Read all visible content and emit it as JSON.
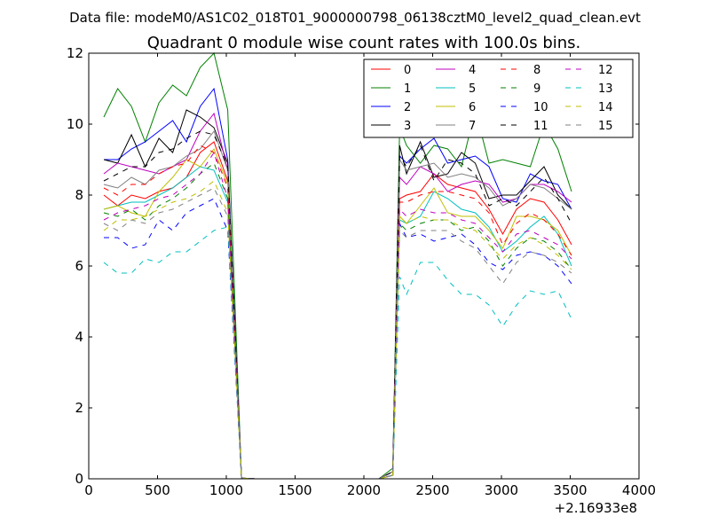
{
  "chart_data": {
    "type": "line",
    "suptitle": "Data file: modeM0/AS1C02_018T01_9000000798_06138cztM0_level2_quad_clean.evt",
    "title": "Quadrant 0 module wise count rates with 100.0s bins.",
    "xlabel": "",
    "ylabel": "",
    "xlim": [
      0,
      4000
    ],
    "ylim": [
      0,
      12
    ],
    "x_ticks": [
      0,
      500,
      1000,
      1500,
      2000,
      2500,
      3000,
      3500,
      4000
    ],
    "y_ticks": [
      0,
      2,
      4,
      6,
      8,
      10,
      12
    ],
    "x_offset_label": "+2.16933e8",
    "grid": false,
    "legend": {
      "placement": "top-right",
      "columns": 4
    },
    "x": [
      110,
      210,
      310,
      410,
      510,
      610,
      710,
      810,
      910,
      1010,
      1110,
      1210,
      1310,
      1410,
      1510,
      1610,
      1710,
      1810,
      1910,
      2010,
      2110,
      2210,
      2260,
      2310,
      2410,
      2510,
      2610,
      2710,
      2810,
      2910,
      3010,
      3110,
      3210,
      3310,
      3410,
      3510
    ],
    "series": [
      {
        "name": "0",
        "color": "#ff0000",
        "dash": "solid",
        "values": [
          8.0,
          7.7,
          8.0,
          7.9,
          8.1,
          8.2,
          8.5,
          9.2,
          9.5,
          8.4,
          0.02,
          0,
          0,
          0,
          0,
          0,
          0,
          0,
          0,
          0,
          0,
          0.1,
          7.9,
          8.0,
          8.1,
          8.6,
          8.3,
          8.2,
          8.1,
          7.6,
          6.9,
          7.6,
          7.9,
          7.8,
          7.3,
          6.6
        ]
      },
      {
        "name": "1",
        "color": "#008000",
        "dash": "solid",
        "values": [
          10.2,
          11.0,
          10.5,
          9.5,
          10.6,
          11.1,
          10.8,
          11.6,
          12.0,
          10.4,
          0.02,
          0,
          0,
          0,
          0,
          0,
          0,
          0,
          0,
          0,
          0,
          0.3,
          9.9,
          9.4,
          8.9,
          9.4,
          9.3,
          8.8,
          10.4,
          8.9,
          9.0,
          8.9,
          8.8,
          10.0,
          9.3,
          8.1
        ]
      },
      {
        "name": "2",
        "color": "#0000ff",
        "dash": "solid",
        "values": [
          9.0,
          9.0,
          9.3,
          9.5,
          9.8,
          10.1,
          9.5,
          10.5,
          11.0,
          9.0,
          0.02,
          0,
          0,
          0,
          0,
          0,
          0,
          0,
          0,
          0,
          0,
          0.2,
          9.1,
          8.9,
          9.3,
          9.6,
          8.9,
          9.0,
          9.1,
          8.8,
          7.9,
          7.8,
          8.6,
          8.4,
          8.3,
          7.6
        ]
      },
      {
        "name": "3",
        "color": "#000000",
        "dash": "solid",
        "values": [
          9.0,
          8.9,
          9.7,
          8.8,
          9.6,
          9.2,
          10.4,
          10.2,
          9.9,
          8.9,
          0.02,
          0,
          0,
          0,
          0,
          0,
          0,
          0,
          0,
          0,
          0,
          0.2,
          9.4,
          8.6,
          9.5,
          8.5,
          8.6,
          9.2,
          8.9,
          7.9,
          8.0,
          8.0,
          8.4,
          8.8,
          8.0,
          7.6
        ]
      },
      {
        "name": "4",
        "color": "#bf00bf",
        "dash": "solid",
        "values": [
          8.6,
          8.9,
          8.8,
          8.7,
          8.6,
          8.8,
          9.0,
          9.8,
          10.3,
          8.7,
          0.02,
          0,
          0,
          0,
          0,
          0,
          0,
          0,
          0,
          0,
          0,
          0.2,
          8.5,
          8.3,
          8.8,
          8.6,
          8.1,
          8.3,
          8.4,
          8.3,
          7.8,
          7.9,
          8.3,
          8.3,
          8.1,
          7.8
        ]
      },
      {
        "name": "5",
        "color": "#00bfbf",
        "dash": "solid",
        "values": [
          7.6,
          7.7,
          7.8,
          7.8,
          8.0,
          8.2,
          8.5,
          8.8,
          8.7,
          7.8,
          0.02,
          0,
          0,
          0,
          0,
          0,
          0,
          0,
          0,
          0,
          0,
          0.1,
          7.3,
          7.2,
          7.4,
          8.1,
          7.9,
          7.6,
          7.5,
          7.1,
          6.4,
          6.7,
          7.1,
          7.4,
          6.9,
          6.0
        ]
      },
      {
        "name": "6",
        "color": "#bfbf00",
        "dash": "solid",
        "values": [
          7.6,
          7.7,
          7.5,
          7.4,
          8.1,
          8.5,
          9.0,
          8.8,
          9.3,
          8.3,
          0.02,
          0,
          0,
          0,
          0,
          0,
          0,
          0,
          0,
          0,
          0,
          0.1,
          7.4,
          7.2,
          7.7,
          8.2,
          7.5,
          7.4,
          7.4,
          7.0,
          6.5,
          7.4,
          7.4,
          7.3,
          7.0,
          6.3
        ]
      },
      {
        "name": "7",
        "color": "#808080",
        "dash": "solid",
        "values": [
          8.3,
          8.2,
          8.5,
          8.3,
          8.7,
          8.8,
          9.1,
          9.3,
          9.8,
          8.7,
          0.02,
          0,
          0,
          0,
          0,
          0,
          0,
          0,
          0,
          0,
          0,
          0.2,
          9.0,
          8.7,
          8.8,
          8.9,
          8.5,
          8.6,
          8.5,
          8.2,
          7.7,
          7.9,
          8.3,
          8.2,
          7.9,
          7.6
        ]
      },
      {
        "name": "8",
        "color": "#ff0000",
        "dash": "dashed",
        "values": [
          8.2,
          8.0,
          8.3,
          8.3,
          8.6,
          8.8,
          8.9,
          9.4,
          9.2,
          8.2,
          0.02,
          0,
          0,
          0,
          0,
          0,
          0,
          0,
          0,
          0,
          0,
          0.1,
          7.8,
          7.8,
          8.0,
          8.1,
          8.1,
          8.0,
          7.9,
          7.5,
          6.6,
          7.2,
          7.5,
          7.3,
          6.9,
          6.3
        ]
      },
      {
        "name": "9",
        "color": "#008000",
        "dash": "dashed",
        "values": [
          7.5,
          7.4,
          7.6,
          7.3,
          7.7,
          7.9,
          8.2,
          8.6,
          8.9,
          7.9,
          0.02,
          0,
          0,
          0,
          0,
          0,
          0,
          0,
          0,
          0,
          0,
          0.1,
          7.2,
          7.0,
          7.2,
          7.3,
          7.3,
          7.0,
          7.1,
          6.7,
          6.0,
          6.5,
          6.8,
          6.7,
          6.4,
          5.9
        ]
      },
      {
        "name": "10",
        "color": "#0000ff",
        "dash": "dashed",
        "values": [
          6.8,
          6.8,
          6.5,
          6.6,
          7.3,
          7.0,
          7.5,
          7.7,
          7.9,
          7.0,
          0.02,
          0,
          0,
          0,
          0,
          0,
          0,
          0,
          0,
          0,
          0,
          0.1,
          7.2,
          6.8,
          6.9,
          6.7,
          6.8,
          6.9,
          6.6,
          6.1,
          5.9,
          6.3,
          6.4,
          6.3,
          6.0,
          5.5
        ]
      },
      {
        "name": "11",
        "color": "#000000",
        "dash": "dashed",
        "values": [
          8.4,
          8.6,
          8.8,
          8.8,
          9.2,
          9.3,
          9.6,
          9.8,
          9.7,
          8.8,
          0.02,
          0,
          0,
          0,
          0,
          0,
          0,
          0,
          0,
          0,
          0,
          0.2,
          9.1,
          8.8,
          9.4,
          8.4,
          9.0,
          8.9,
          8.6,
          7.7,
          7.9,
          7.7,
          8.1,
          8.5,
          7.9,
          7.2
        ]
      },
      {
        "name": "12",
        "color": "#bf00bf",
        "dash": "dashed",
        "values": [
          7.3,
          7.5,
          7.6,
          7.7,
          7.9,
          8.0,
          8.3,
          8.6,
          9.2,
          7.9,
          0.02,
          0,
          0,
          0,
          0,
          0,
          0,
          0,
          0,
          0,
          0,
          0.1,
          7.6,
          7.4,
          7.6,
          7.5,
          7.5,
          7.3,
          7.2,
          6.8,
          6.4,
          6.9,
          7.0,
          6.8,
          6.6,
          6.2
        ]
      },
      {
        "name": "13",
        "color": "#00bfbf",
        "dash": "dashed",
        "values": [
          6.1,
          5.8,
          5.8,
          6.2,
          6.1,
          6.4,
          6.4,
          6.7,
          7.0,
          7.1,
          0.02,
          0,
          0,
          0,
          0,
          0,
          0,
          0,
          0,
          0,
          0,
          0.1,
          5.7,
          5.2,
          6.1,
          6.1,
          5.6,
          5.2,
          5.2,
          4.9,
          4.3,
          4.9,
          5.3,
          5.2,
          5.3,
          4.5
        ]
      },
      {
        "name": "14",
        "color": "#bfbf00",
        "dash": "dashed",
        "values": [
          7.0,
          7.3,
          7.3,
          7.4,
          7.6,
          7.8,
          7.9,
          8.1,
          8.4,
          7.5,
          0.02,
          0,
          0,
          0,
          0,
          0,
          0,
          0,
          0,
          0,
          0,
          0.1,
          7.4,
          7.2,
          7.4,
          7.3,
          7.3,
          7.1,
          7.0,
          6.6,
          6.2,
          6.6,
          6.8,
          6.6,
          6.3,
          5.9
        ]
      },
      {
        "name": "15",
        "color": "#808080",
        "dash": "dashed",
        "values": [
          7.2,
          7.0,
          7.3,
          7.2,
          7.5,
          7.6,
          7.8,
          8.0,
          8.2,
          7.4,
          0.02,
          0,
          0,
          0,
          0,
          0,
          0,
          0,
          0,
          0,
          0,
          0.1,
          7.0,
          6.8,
          7.0,
          7.0,
          7.0,
          6.7,
          6.5,
          6.0,
          5.5,
          6.1,
          6.4,
          6.3,
          6.1,
          5.8
        ]
      }
    ]
  }
}
